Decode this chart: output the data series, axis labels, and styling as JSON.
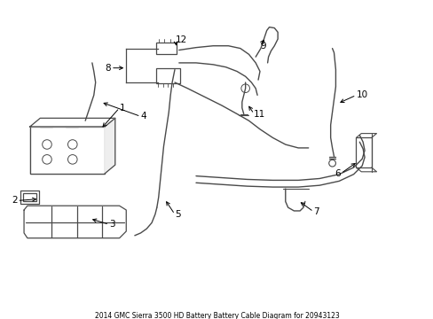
{
  "title": "2014 GMC Sierra 3500 HD Battery Battery Cable Diagram for 20943123",
  "bg": "#ffffff",
  "lc": "#4a4a4a",
  "tc": "#000000",
  "figsize": [
    4.89,
    3.6
  ],
  "dpi": 100
}
